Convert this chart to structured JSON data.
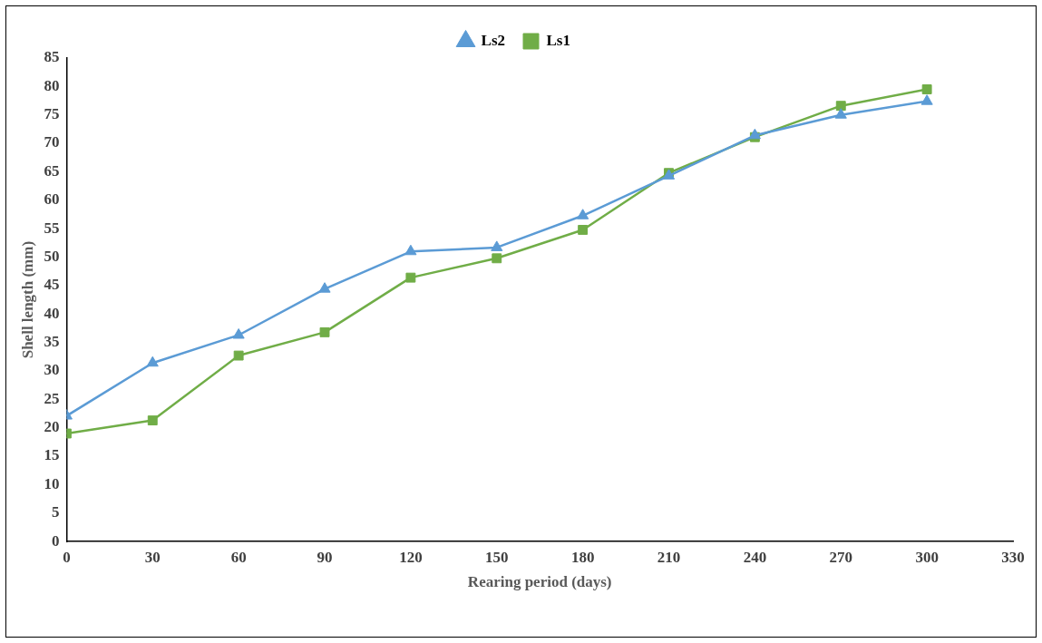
{
  "chart_data": {
    "type": "line",
    "xlabel": "Rearing period (days)",
    "ylabel": "Shell length (mm)",
    "x": [
      0,
      30,
      60,
      90,
      120,
      150,
      180,
      210,
      240,
      270,
      300
    ],
    "series": [
      {
        "name": "Ls1",
        "color": "#70ad47",
        "marker": "square",
        "values": [
          19,
          21.3,
          32.7,
          36.8,
          46.4,
          49.8,
          54.8,
          64.8,
          71.1,
          76.6,
          79.5
        ]
      },
      {
        "name": "Ls2",
        "color": "#5b9bd5",
        "marker": "triangle",
        "values": [
          22.1,
          31.4,
          36.3,
          44.4,
          51.0,
          51.7,
          57.3,
          64.3,
          71.4,
          75.0,
          77.4
        ]
      }
    ],
    "xlim": [
      0,
      330
    ],
    "xticks": [
      0,
      30,
      60,
      90,
      120,
      150,
      180,
      210,
      240,
      270,
      300,
      330
    ],
    "ylim": [
      0,
      85
    ],
    "yticks": [
      0,
      5,
      10,
      15,
      20,
      25,
      30,
      35,
      40,
      45,
      50,
      55,
      60,
      65,
      70,
      75,
      80,
      85
    ],
    "grid": false,
    "legend": "top"
  }
}
